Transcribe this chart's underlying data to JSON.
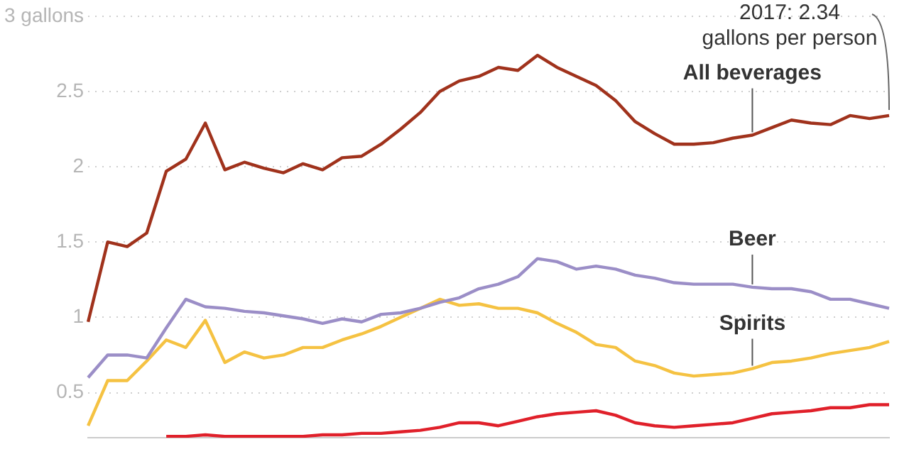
{
  "chart_data": {
    "type": "line",
    "categories": [
      null,
      null,
      null,
      null,
      null,
      null,
      null,
      null,
      null,
      null,
      null,
      null,
      null,
      null,
      null,
      null,
      null,
      null,
      null,
      null,
      null,
      null,
      null,
      null,
      null,
      null,
      null,
      null,
      null,
      null,
      null,
      null,
      null,
      null,
      null,
      null,
      null,
      null,
      null,
      null,
      null,
      null
    ],
    "series": [
      {
        "name": "All beverages",
        "color": "#a0321c",
        "values": [
          0.97,
          1.5,
          1.47,
          1.56,
          1.97,
          2.05,
          2.29,
          1.98,
          2.03,
          1.99,
          1.96,
          2.02,
          1.98,
          2.06,
          2.07,
          2.15,
          2.25,
          2.36,
          2.5,
          2.57,
          2.6,
          2.66,
          2.64,
          2.74,
          2.66,
          2.6,
          2.54,
          2.44,
          2.3,
          2.22,
          2.15,
          2.15,
          2.16,
          2.19,
          2.21,
          2.26,
          2.31,
          2.29,
          2.28,
          2.34,
          2.32,
          2.34
        ]
      },
      {
        "name": "Beer",
        "color": "#9b8ec7",
        "values": [
          0.6,
          0.75,
          0.75,
          0.73,
          0.93,
          1.12,
          1.07,
          1.06,
          1.04,
          1.03,
          1.01,
          0.99,
          0.96,
          0.99,
          0.97,
          1.02,
          1.03,
          1.06,
          1.1,
          1.13,
          1.19,
          1.22,
          1.27,
          1.39,
          1.37,
          1.32,
          1.34,
          1.32,
          1.28,
          1.26,
          1.23,
          1.22,
          1.22,
          1.22,
          1.2,
          1.19,
          1.19,
          1.17,
          1.12,
          1.12,
          1.09,
          1.06
        ]
      },
      {
        "name": "Spirits",
        "color": "#f5c242",
        "values": [
          0.28,
          0.58,
          0.58,
          0.71,
          0.85,
          0.8,
          0.98,
          0.7,
          0.77,
          0.73,
          0.75,
          0.8,
          0.8,
          0.85,
          0.89,
          0.94,
          1.0,
          1.06,
          1.12,
          1.08,
          1.09,
          1.06,
          1.06,
          1.03,
          0.96,
          0.9,
          0.82,
          0.8,
          0.71,
          0.68,
          0.63,
          0.61,
          0.62,
          0.63,
          0.66,
          0.7,
          0.71,
          0.73,
          0.76,
          0.78,
          0.8,
          0.84
        ]
      },
      {
        "color": "#e0202a",
        "values": [
          null,
          null,
          null,
          null,
          0.21,
          0.21,
          0.22,
          0.21,
          0.21,
          0.21,
          0.21,
          0.21,
          0.22,
          0.22,
          0.23,
          0.23,
          0.24,
          0.25,
          0.27,
          0.3,
          0.3,
          0.28,
          0.31,
          0.34,
          0.36,
          0.37,
          0.38,
          0.35,
          0.3,
          0.28,
          0.27,
          0.28,
          0.29,
          0.3,
          0.33,
          0.36,
          0.37,
          0.38,
          0.4,
          0.4,
          0.42,
          0.42
        ]
      }
    ],
    "ylim": [
      0.2,
      3
    ],
    "yticks": [
      0.5,
      1,
      1.5,
      2,
      2.5,
      {
        "value": 3,
        "label": "3 gallons"
      }
    ],
    "grid": "y",
    "legend": false,
    "marker": "none",
    "line_style": "solid",
    "tick_labels": "y",
    "annotations": [
      "2017: 2.34 gallons per person"
    ]
  }
}
